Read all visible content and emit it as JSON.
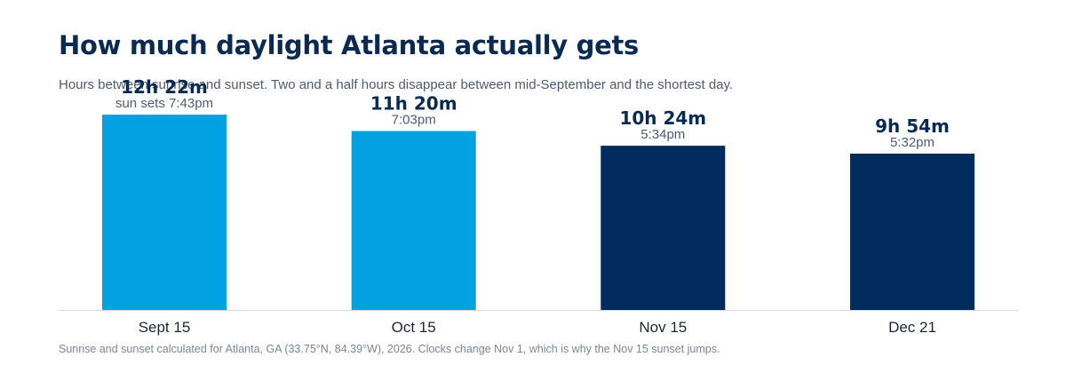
{
  "header": {
    "title": "How much daylight Atlanta actually gets",
    "subtitle": "Hours between sunrise and sunset. Two and a half hours disappear between mid-September and the shortest day."
  },
  "footnote": "Sunrise and sunset calculated for Atlanta, GA (33.75°N, 84.39°W), 2026. Clocks change Nov 1, which is why the Nov 15 sunset jumps.",
  "colors": {
    "before_clock_change": "#00a3e0",
    "after_clock_change": "#002b5c",
    "text_dark": "#0b2a52",
    "baseline": "#d5d9df"
  },
  "chart_data": {
    "type": "bar",
    "title": "How much daylight Atlanta actually gets",
    "subtitle": "Hours between sunrise and sunset. Two and a half hours disappear between mid-September and the shortest day.",
    "xlabel": "",
    "ylabel": "",
    "categories": [
      "Sept 15",
      "Oct 15",
      "Nov 15",
      "Dec 21"
    ],
    "values": [
      12.367,
      11.333,
      10.4,
      9.9
    ],
    "value_labels": [
      "12h 22m",
      "11h 20m",
      "10h 24m",
      "9h 54m"
    ],
    "sunset_labels": [
      "sun sets 7:43pm",
      "7:03pm",
      "5:34pm",
      "5:32pm"
    ],
    "bar_colors": [
      "#00a3e0",
      "#00a3e0",
      "#002b5c",
      "#002b5c"
    ],
    "ylim": [
      0,
      13.5
    ],
    "grid": false,
    "legend": "none"
  }
}
